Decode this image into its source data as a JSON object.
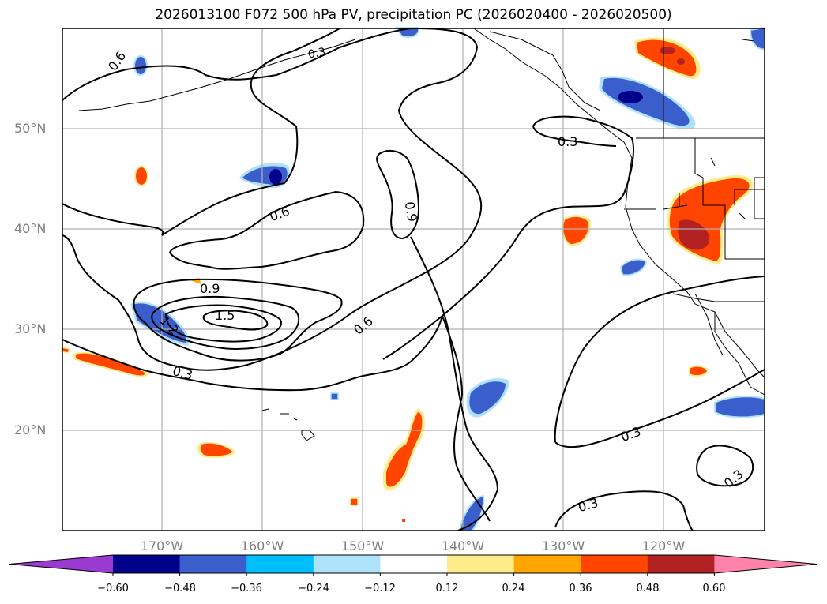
{
  "title": "2026013100 F072 500 hPa PV, precipitation PC (2026020400 - 2026020500)",
  "lat_labels": [
    "50°N",
    "40°N",
    "30°N",
    "20°N"
  ],
  "lon_labels": [
    "170°W",
    "160°W",
    "150°W",
    "140°W",
    "130°W",
    "120°W"
  ],
  "colorbar": {
    "ticks": [
      "−0.60",
      "−0.48",
      "−0.36",
      "−0.24",
      "−0.12",
      "0.12",
      "0.24",
      "0.36",
      "0.48",
      "0.60"
    ],
    "colors": [
      "#9a3ad1",
      "#00008b",
      "#3a5fcd",
      "#00bfff",
      "#aee1fa",
      "#ffffff",
      "#ffec8b",
      "#ffa500",
      "#ff4500",
      "#b22222",
      "#ff82ab"
    ]
  },
  "contour_labels": [
    "0.6",
    "0.3",
    "0.3",
    "0.6",
    "0.9",
    "0.9",
    "1.5",
    "1.2",
    "0.6",
    "0.3",
    "0.3",
    "0.3",
    "0.3"
  ],
  "colors": {
    "contour": "#000000",
    "grid": "#b0b0b0",
    "coast": "#000000"
  }
}
